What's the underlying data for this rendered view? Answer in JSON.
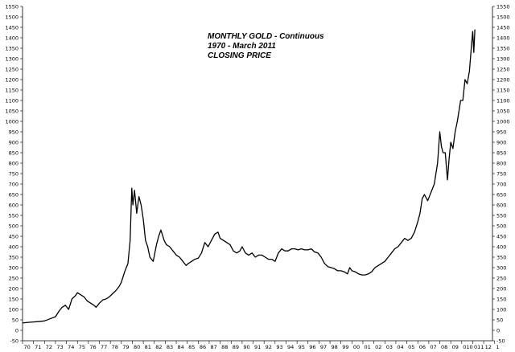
{
  "chart_data": {
    "type": "line",
    "title_lines": [
      "MONTHLY GOLD - Continuous",
      "1970 - March 2011",
      "CLOSING PRICE"
    ],
    "xlabel": "",
    "ylabel": "",
    "ylim": [
      -50,
      1550
    ],
    "xlim": [
      1970,
      2012.8
    ],
    "y_ticks": [
      -50,
      0,
      50,
      100,
      150,
      200,
      250,
      300,
      350,
      400,
      450,
      500,
      550,
      600,
      650,
      700,
      750,
      800,
      850,
      900,
      950,
      1000,
      1050,
      1100,
      1150,
      1200,
      1250,
      1300,
      1350,
      1400,
      1450,
      1500,
      1550
    ],
    "x_tick_labels": [
      "70",
      "71",
      "72",
      "73",
      "74",
      "75",
      "76",
      "77",
      "78",
      "79",
      "80",
      "81",
      "82",
      "83",
      "84",
      "85",
      "86",
      "87",
      "88",
      "89",
      "90",
      "91",
      "92",
      "93",
      "94",
      "95",
      "96",
      "97",
      "98",
      "99",
      "00",
      "01",
      "02",
      "03",
      "04",
      "05",
      "06",
      "07",
      "08",
      "09",
      "010",
      "011",
      "12",
      "1"
    ],
    "grid": false,
    "series": [
      {
        "color": "#000000",
        "x": [
          1970.0,
          1970.5,
          1971.0,
          1971.5,
          1972.0,
          1972.5,
          1973.0,
          1973.3,
          1973.6,
          1973.9,
          1974.2,
          1974.5,
          1974.8,
          1975.0,
          1975.3,
          1975.6,
          1975.9,
          1976.2,
          1976.5,
          1976.7,
          1977.0,
          1977.3,
          1977.6,
          1977.9,
          1978.2,
          1978.5,
          1978.8,
          1979.0,
          1979.3,
          1979.6,
          1979.8,
          1979.95,
          1980.05,
          1980.2,
          1980.4,
          1980.6,
          1980.8,
          1981.0,
          1981.2,
          1981.4,
          1981.6,
          1981.9,
          1982.2,
          1982.4,
          1982.6,
          1982.9,
          1983.1,
          1983.4,
          1983.7,
          1984.0,
          1984.3,
          1984.6,
          1984.9,
          1985.1,
          1985.4,
          1985.7,
          1986.0,
          1986.3,
          1986.6,
          1986.9,
          1987.2,
          1987.5,
          1987.8,
          1988.0,
          1988.3,
          1988.6,
          1988.9,
          1989.2,
          1989.5,
          1989.8,
          1990.0,
          1990.3,
          1990.6,
          1990.9,
          1991.2,
          1991.5,
          1991.8,
          1992.1,
          1992.4,
          1992.7,
          1993.0,
          1993.3,
          1993.6,
          1993.9,
          1994.2,
          1994.5,
          1994.8,
          1995.1,
          1995.4,
          1995.7,
          1996.0,
          1996.3,
          1996.6,
          1996.9,
          1997.2,
          1997.5,
          1997.8,
          1998.1,
          1998.4,
          1998.7,
          1999.0,
          1999.3,
          1999.6,
          1999.8,
          2000.0,
          2000.3,
          2000.6,
          2000.9,
          2001.2,
          2001.5,
          2001.8,
          2002.1,
          2002.4,
          2002.7,
          2003.0,
          2003.3,
          2003.6,
          2003.9,
          2004.2,
          2004.5,
          2004.8,
          2005.1,
          2005.4,
          2005.7,
          2006.0,
          2006.2,
          2006.4,
          2006.6,
          2006.9,
          2007.2,
          2007.5,
          2007.8,
          2008.0,
          2008.15,
          2008.3,
          2008.5,
          2008.7,
          2008.85,
          2009.0,
          2009.2,
          2009.4,
          2009.6,
          2009.9,
          2010.1,
          2010.3,
          2010.5,
          2010.7,
          2010.9,
          2011.0,
          2011.1,
          2011.2
        ],
        "y": [
          35,
          38,
          40,
          42,
          45,
          55,
          65,
          90,
          110,
          120,
          100,
          150,
          165,
          180,
          170,
          160,
          140,
          130,
          120,
          110,
          130,
          145,
          150,
          160,
          175,
          190,
          210,
          230,
          280,
          320,
          430,
          680,
          600,
          670,
          560,
          640,
          600,
          530,
          430,
          400,
          350,
          330,
          410,
          450,
          480,
          430,
          410,
          400,
          380,
          360,
          350,
          330,
          310,
          320,
          330,
          340,
          345,
          370,
          420,
          400,
          430,
          460,
          470,
          440,
          430,
          420,
          410,
          380,
          370,
          380,
          400,
          370,
          360,
          370,
          350,
          360,
          360,
          350,
          340,
          340,
          330,
          370,
          390,
          380,
          380,
          390,
          390,
          385,
          390,
          385,
          385,
          390,
          375,
          370,
          350,
          320,
          305,
          300,
          295,
          285,
          285,
          280,
          270,
          300,
          285,
          280,
          270,
          265,
          265,
          270,
          280,
          300,
          310,
          320,
          330,
          350,
          370,
          390,
          400,
          420,
          440,
          430,
          440,
          470,
          520,
          560,
          630,
          650,
          620,
          660,
          700,
          800,
          950,
          880,
          850,
          850,
          720,
          820,
          900,
          870,
          950,
          1000,
          1100,
          1100,
          1200,
          1180,
          1240,
          1370,
          1430,
          1330,
          1440
        ]
      }
    ]
  }
}
